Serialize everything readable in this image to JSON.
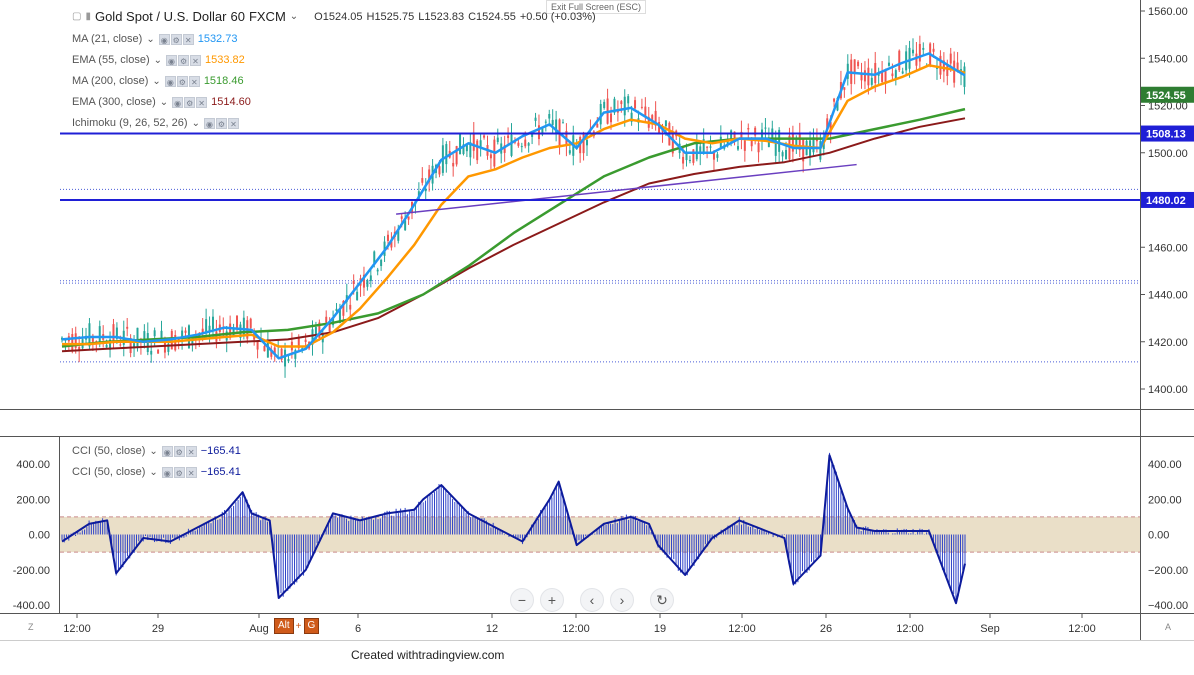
{
  "window": {
    "fullscreen_hint": "Exit Full Screen (ESC)",
    "caption": "Created withtradingview.com"
  },
  "legend": {
    "symbol": "Gold Spot / U.S. Dollar",
    "interval": "60",
    "exchange": "FXCM",
    "open": "O1524.05",
    "high": "H1525.75",
    "low": "L1523.83",
    "close": "C1524.55",
    "change": "+0.50 (+0.03%)",
    "indicators": [
      {
        "name": "MA (21, close)",
        "value": "1532.73",
        "color": "#2196f3"
      },
      {
        "name": "EMA (55, close)",
        "value": "1533.82",
        "color": "#ff9800"
      },
      {
        "name": "MA (200, close)",
        "value": "1518.46",
        "color": "#3a9b2f"
      },
      {
        "name": "EMA (300, close)",
        "value": "1514.60",
        "color": "#8b1a1a"
      },
      {
        "name": "Ichimoku (9, 26, 52, 26)",
        "value": "",
        "color": "#888888"
      }
    ],
    "cci": [
      {
        "name": "CCI (50, close)",
        "value": "−165.41",
        "color": "#0d1b9c"
      },
      {
        "name": "CCI (50, close)",
        "value": "−165.41",
        "color": "#0d1b9c"
      }
    ]
  },
  "price_axis": {
    "ticks": [
      "1560.00",
      "1540.00",
      "1520.00",
      "1500.00",
      "1480.00",
      "1460.00",
      "1440.00",
      "1420.00",
      "1400.00"
    ],
    "tick_values": [
      1560,
      1540,
      1520,
      1500,
      1480,
      1460,
      1440,
      1420,
      1400
    ],
    "last_price_label": "1524.55",
    "level_labels": [
      "1508.13",
      "1480.02"
    ]
  },
  "cci_axis": {
    "left_ticks": [
      "400.00",
      "200.00",
      "0.00",
      "-200.00",
      "-400.00"
    ],
    "right_ticks": [
      "400.00",
      "200.00",
      "0.00",
      "−200.00",
      "−400.00"
    ],
    "tick_values": [
      400,
      200,
      0,
      -200,
      -400
    ],
    "band": [
      -100,
      100
    ]
  },
  "time_axis": {
    "labels": [
      "12:00",
      "29",
      "Aug",
      "6",
      "12",
      "12:00",
      "19",
      "12:00",
      "26",
      "12:00",
      "Sep",
      "12:00"
    ]
  },
  "toolbar": {
    "zoom_out": "−",
    "zoom_in": "+",
    "back": "‹",
    "forward": "›",
    "reset": "↻"
  },
  "hotkey": {
    "key1": "Alt",
    "plus": "+",
    "key2": "G"
  },
  "corners": {
    "left": "Z",
    "right": "A"
  },
  "colors": {
    "up": "#26a69a",
    "down": "#ef5350",
    "level_line": "#1f1fd6",
    "cci_line": "#0d1b9c",
    "cci_band": "#eadfc8"
  },
  "chart_data": {
    "type": "line",
    "title": "Gold Spot / U.S. Dollar, 60, FXCM",
    "ylim": [
      1395,
      1565
    ],
    "time_index_range": [
      0,
      100
    ],
    "horizontal_levels": [
      1508.13,
      1480.02
    ],
    "dotted_levels": [
      1484.5,
      1445.8,
      1444.8,
      1411.5
    ],
    "trendline": {
      "x": [
        37,
        88
      ],
      "y": [
        1474,
        1495
      ]
    },
    "series": [
      {
        "name": "MA (21, close)",
        "color": "#2196f3",
        "x": [
          0,
          3,
          6,
          9,
          12,
          15,
          18,
          21,
          24,
          27,
          30,
          33,
          36,
          39,
          42,
          45,
          48,
          51,
          54,
          57,
          60,
          63,
          66,
          69,
          72,
          75,
          78,
          81,
          84,
          87,
          90,
          93,
          96,
          99,
          100
        ],
        "y": [
          1421,
          1422,
          1422,
          1420,
          1421,
          1423,
          1426,
          1425,
          1413,
          1417,
          1430,
          1445,
          1460,
          1478,
          1497,
          1504,
          1500,
          1507,
          1512,
          1502,
          1517,
          1519,
          1512,
          1500,
          1500,
          1506,
          1506,
          1502,
          1502,
          1534,
          1533,
          1538,
          1542,
          1535,
          1532.73
        ]
      },
      {
        "name": "EMA (55, close)",
        "color": "#ff9800",
        "x": [
          0,
          3,
          6,
          9,
          12,
          15,
          18,
          21,
          24,
          27,
          30,
          33,
          36,
          39,
          42,
          45,
          48,
          51,
          54,
          57,
          60,
          63,
          66,
          69,
          72,
          75,
          78,
          81,
          84,
          87,
          90,
          93,
          96,
          99,
          100
        ],
        "y": [
          1419,
          1419,
          1420,
          1420,
          1420,
          1421,
          1422,
          1423,
          1418,
          1418,
          1424,
          1434,
          1447,
          1461,
          1478,
          1490,
          1493,
          1498,
          1502,
          1504,
          1510,
          1514,
          1512,
          1506,
          1504,
          1506,
          1505,
          1503,
          1502,
          1522,
          1528,
          1532,
          1537,
          1535,
          1533.82
        ]
      },
      {
        "name": "MA (200, close)",
        "color": "#3a9b2f",
        "x": [
          0,
          5,
          10,
          15,
          20,
          25,
          30,
          35,
          40,
          45,
          50,
          55,
          60,
          65,
          70,
          75,
          80,
          85,
          90,
          95,
          100
        ],
        "y": [
          1418,
          1420,
          1421,
          1422,
          1424,
          1425,
          1428,
          1432,
          1440,
          1452,
          1466,
          1478,
          1490,
          1498,
          1504,
          1506,
          1506,
          1506,
          1510,
          1514,
          1518.46
        ]
      },
      {
        "name": "EMA (300, close)",
        "color": "#8b1a1a",
        "x": [
          0,
          5,
          10,
          15,
          20,
          25,
          30,
          35,
          40,
          45,
          50,
          55,
          60,
          65,
          70,
          75,
          80,
          85,
          90,
          95,
          100
        ],
        "y": [
          1416,
          1417,
          1418,
          1419,
          1420,
          1421,
          1424,
          1430,
          1440,
          1451,
          1461,
          1470,
          1479,
          1487,
          1491,
          1494,
          1496,
          1500,
          1506,
          1511,
          1514.6
        ]
      },
      {
        "name": "CCI (50, close)",
        "color": "#0d1b9c",
        "x": [
          0,
          3,
          5,
          6,
          9,
          12,
          15,
          18,
          20,
          21,
          23,
          24,
          27,
          30,
          33,
          36,
          39,
          40,
          42,
          45,
          48,
          51,
          54,
          55,
          57,
          60,
          63,
          65,
          66,
          69,
          72,
          75,
          78,
          80,
          81,
          84,
          85,
          87,
          88,
          90,
          93,
          96,
          99,
          100
        ],
        "y": [
          -40,
          60,
          80,
          -220,
          -20,
          -40,
          40,
          120,
          240,
          120,
          80,
          -360,
          -200,
          120,
          80,
          120,
          140,
          200,
          280,
          120,
          40,
          -40,
          200,
          300,
          -60,
          60,
          100,
          60,
          -60,
          -230,
          -20,
          80,
          20,
          -20,
          -280,
          -120,
          450,
          150,
          40,
          20,
          20,
          20,
          -390,
          -165.41
        ]
      }
    ]
  }
}
